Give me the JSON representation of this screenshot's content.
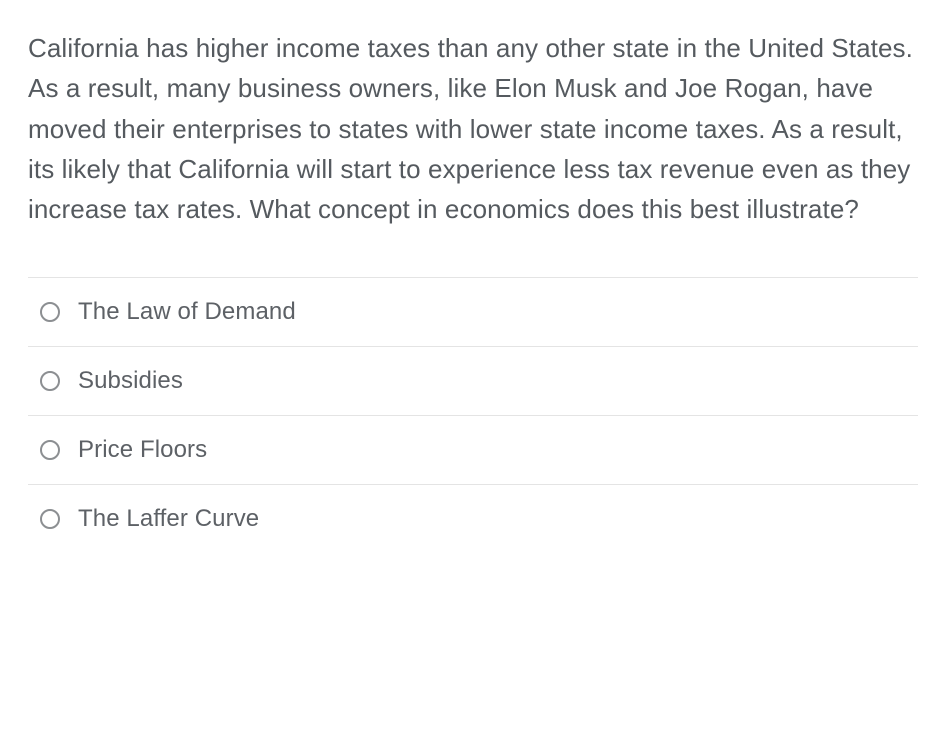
{
  "question": {
    "text": "California has higher income taxes than any other state in the United States.  As a result, many business owners, like Elon Musk and Joe Rogan, have moved their enterprises to states with lower state income taxes.  As a result, its likely that California will start to experience less tax revenue even as they increase tax rates.  What concept in economics does this best illustrate?",
    "text_color": "#555a5f",
    "font_size_pt": 20
  },
  "options": [
    {
      "label": "The Law of Demand",
      "selected": false
    },
    {
      "label": "Subsidies",
      "selected": false
    },
    {
      "label": "Price Floors",
      "selected": false
    },
    {
      "label": "The Laffer Curve",
      "selected": false
    }
  ],
  "styling": {
    "background_color": "#ffffff",
    "divider_color": "#e4e4e4",
    "radio_border_color": "#8c8f92",
    "option_text_color": "#5d6166",
    "option_font_size_pt": 18
  }
}
